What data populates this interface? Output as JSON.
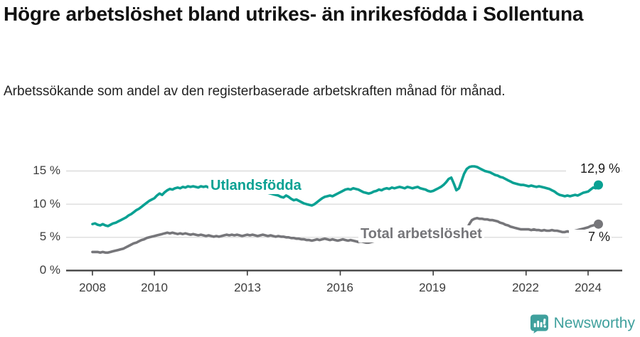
{
  "header": {
    "title": "Högre arbetslöshet bland utrikes- än inrikesfödda i Sollentuna",
    "subtitle": "Arbetssökande som andel av den registerbaserade arbetskraften månad för månad."
  },
  "chart_data": {
    "type": "line",
    "title": "Högre arbetslöshet bland utrikes- än inrikesfödda i Sollentuna",
    "subtitle": "Arbetssökande som andel av den registerbaserade arbetskraften månad för månad.",
    "xlabel": "",
    "ylabel": "",
    "unit": "%",
    "frequency": "monthly",
    "start": {
      "year": 2008,
      "month": 1
    },
    "xlim": [
      2007.15,
      2025.1
    ],
    "ylim": [
      0,
      16.6
    ],
    "grid": true,
    "grid_values": [
      5,
      10,
      15
    ],
    "x_ticks": [
      2008,
      2010,
      2013,
      2016,
      2019,
      2022,
      2024
    ],
    "x_tick_labels": [
      "2008",
      "2010",
      "2013",
      "2016",
      "2019",
      "2022",
      "2024"
    ],
    "y_tick_labels_top_down": [
      "15 %",
      "10 %",
      "5 %",
      "0 %"
    ],
    "legend_position": "inline-labels",
    "series": [
      {
        "name": "Utlandsfödda",
        "color": "#0aa193",
        "end_label": "12,9 %",
        "last_value": 12.9,
        "values": [
          7.0,
          7.1,
          6.9,
          6.8,
          7.0,
          6.8,
          6.7,
          6.9,
          7.1,
          7.2,
          7.4,
          7.6,
          7.8,
          8.0,
          8.3,
          8.5,
          8.8,
          9.1,
          9.3,
          9.6,
          9.9,
          10.2,
          10.5,
          10.7,
          10.9,
          11.3,
          11.6,
          11.4,
          11.8,
          12.1,
          12.3,
          12.2,
          12.4,
          12.5,
          12.4,
          12.6,
          12.5,
          12.7,
          12.6,
          12.7,
          12.6,
          12.5,
          12.7,
          12.6,
          12.7,
          12.5,
          12.6,
          12.5,
          12.4,
          12.3,
          12.4,
          12.5,
          12.4,
          12.3,
          12.4,
          12.3,
          12.4,
          12.2,
          12.1,
          12.0,
          11.9,
          12.0,
          11.9,
          11.8,
          11.9,
          12.0,
          11.9,
          11.8,
          11.7,
          11.6,
          11.5,
          11.4,
          11.3,
          11.1,
          11.0,
          11.3,
          11.1,
          10.8,
          10.6,
          10.7,
          10.5,
          10.3,
          10.1,
          10.0,
          9.9,
          9.8,
          10.0,
          10.3,
          10.6,
          10.9,
          11.1,
          11.2,
          11.3,
          11.2,
          11.4,
          11.6,
          11.8,
          12.0,
          12.2,
          12.3,
          12.2,
          12.4,
          12.3,
          12.2,
          12.0,
          11.8,
          11.7,
          11.6,
          11.7,
          11.9,
          12.0,
          12.2,
          12.1,
          12.3,
          12.4,
          12.3,
          12.5,
          12.4,
          12.5,
          12.6,
          12.5,
          12.4,
          12.6,
          12.5,
          12.4,
          12.5,
          12.6,
          12.4,
          12.3,
          12.2,
          12.0,
          11.9,
          12.0,
          12.2,
          12.4,
          12.6,
          12.9,
          13.3,
          13.8,
          14.0,
          13.1,
          12.1,
          12.4,
          13.5,
          14.6,
          15.3,
          15.6,
          15.7,
          15.7,
          15.6,
          15.4,
          15.2,
          15.0,
          14.9,
          14.8,
          14.6,
          14.4,
          14.3,
          14.1,
          14.0,
          13.8,
          13.6,
          13.4,
          13.2,
          13.1,
          13.0,
          12.9,
          12.9,
          12.8,
          12.7,
          12.8,
          12.7,
          12.6,
          12.7,
          12.6,
          12.5,
          12.4,
          12.3,
          12.1,
          11.9,
          11.6,
          11.4,
          11.3,
          11.2,
          11.3,
          11.2,
          11.3,
          11.4,
          11.3,
          11.5,
          11.7,
          11.8,
          11.9,
          12.2,
          12.5,
          12.4,
          12.9
        ]
      },
      {
        "name": "Total arbetslöshet",
        "color": "#76767a",
        "end_label": "7 %",
        "last_value": 7.0,
        "values": [
          2.8,
          2.8,
          2.8,
          2.7,
          2.8,
          2.7,
          2.7,
          2.8,
          2.9,
          3.0,
          3.1,
          3.2,
          3.3,
          3.5,
          3.7,
          3.9,
          4.1,
          4.2,
          4.4,
          4.6,
          4.7,
          4.9,
          5.0,
          5.1,
          5.2,
          5.3,
          5.4,
          5.5,
          5.6,
          5.7,
          5.6,
          5.7,
          5.6,
          5.5,
          5.6,
          5.5,
          5.6,
          5.5,
          5.4,
          5.5,
          5.4,
          5.3,
          5.4,
          5.3,
          5.2,
          5.3,
          5.2,
          5.1,
          5.2,
          5.1,
          5.2,
          5.3,
          5.4,
          5.3,
          5.4,
          5.3,
          5.4,
          5.3,
          5.2,
          5.3,
          5.4,
          5.3,
          5.4,
          5.3,
          5.2,
          5.3,
          5.4,
          5.3,
          5.2,
          5.3,
          5.2,
          5.1,
          5.2,
          5.1,
          5.1,
          5.0,
          5.0,
          4.9,
          4.9,
          4.8,
          4.8,
          4.7,
          4.7,
          4.6,
          4.6,
          4.5,
          4.6,
          4.7,
          4.6,
          4.7,
          4.8,
          4.7,
          4.6,
          4.7,
          4.6,
          4.5,
          4.6,
          4.7,
          4.6,
          4.5,
          4.6,
          4.5,
          4.4,
          4.3,
          4.4,
          4.3,
          4.2,
          4.2,
          4.3,
          4.4,
          4.5,
          4.6,
          4.7,
          4.8,
          4.9,
          4.8,
          4.9,
          5.0,
          5.0,
          5.1,
          5.1,
          5.2,
          5.1,
          5.2,
          5.1,
          5.2,
          5.1,
          5.0,
          5.1,
          5.0,
          5.1,
          5.2,
          5.2,
          5.1,
          5.2,
          5.3,
          5.2,
          5.3,
          5.4,
          5.3,
          5.2,
          5.2,
          5.3,
          5.4,
          5.5,
          6.2,
          7.0,
          7.6,
          7.8,
          7.9,
          7.8,
          7.8,
          7.7,
          7.7,
          7.6,
          7.6,
          7.5,
          7.4,
          7.2,
          7.1,
          6.9,
          6.8,
          6.6,
          6.5,
          6.4,
          6.3,
          6.2,
          6.2,
          6.2,
          6.2,
          6.1,
          6.2,
          6.1,
          6.1,
          6.0,
          6.1,
          6.0,
          6.0,
          6.1,
          6.0,
          6.0,
          5.9,
          5.8,
          5.8,
          5.9,
          5.8,
          5.9,
          6.0,
          6.1,
          6.2,
          6.3,
          6.4,
          6.5,
          6.7,
          6.8,
          6.9,
          7.0
        ]
      }
    ]
  },
  "colors": {
    "accent_teal": "#0aa193",
    "line_gray": "#76767a",
    "gridline": "#dcdcdc",
    "axis": "#3b3b3b",
    "tick_text": "#3c3c3c",
    "brand_teal": "#3fa09d"
  },
  "footer": {
    "brand": "Newsworthy"
  }
}
